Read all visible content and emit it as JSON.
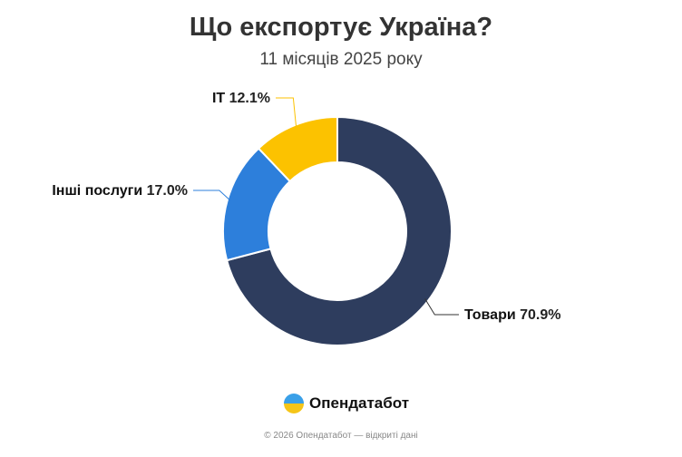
{
  "chart_data": {
    "type": "pie",
    "variant": "donut",
    "title": "Що експортує Україна?",
    "subtitle": "11 місяців 2025 року",
    "slices": [
      {
        "label": "Товари",
        "value": 70.9,
        "value_label": "70.9%",
        "color": "#2e3d5e"
      },
      {
        "label": "Інші послуги",
        "value": 17.0,
        "value_label": "17.0%",
        "color": "#2d7fdb"
      },
      {
        "label": "IT",
        "value": 12.1,
        "value_label": "12.1%",
        "color": "#fcc200"
      }
    ]
  },
  "brand": {
    "name": "Опендатабот"
  },
  "footer": "© 2026 Опендатабот — відкриті дані"
}
